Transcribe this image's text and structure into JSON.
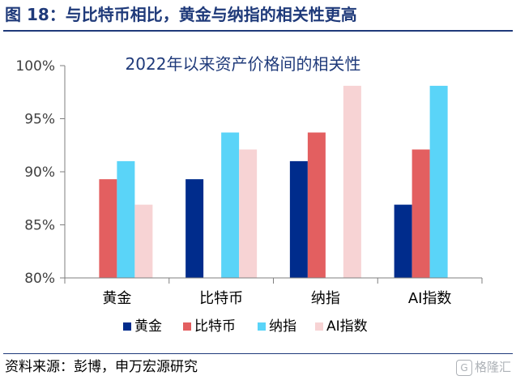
{
  "figure": {
    "title": "图 18：与比特币相比，黄金与纳指的相关性更高",
    "source": "资料来源：彭博，申万宏源研究",
    "watermark": "格隆汇"
  },
  "chart_data": {
    "type": "bar",
    "title": "2022年以来资产价格间的相关性",
    "xlabel": "",
    "ylabel": "",
    "categories": [
      "黄金",
      "比特币",
      "纳指",
      "AI指数"
    ],
    "series": [
      {
        "name": "黄金",
        "color": "#002c8c",
        "values": [
          null,
          89.3,
          91.0,
          86.9
        ]
      },
      {
        "name": "比特币",
        "color": "#e35f60",
        "values": [
          89.3,
          null,
          93.7,
          92.1
        ]
      },
      {
        "name": "纳指",
        "color": "#5ad4f8",
        "values": [
          91.0,
          93.7,
          null,
          98.1
        ]
      },
      {
        "name": "AI指数",
        "color": "#f7d3d4",
        "values": [
          86.9,
          92.1,
          98.1,
          null
        ]
      }
    ],
    "ylim": [
      80,
      100
    ],
    "yticks": [
      80,
      85,
      90,
      95,
      100
    ],
    "ytick_labels": [
      "80%",
      "85%",
      "90%",
      "95%",
      "100%"
    ],
    "y_unit": "%",
    "grid": false,
    "legend_position": "bottom"
  }
}
